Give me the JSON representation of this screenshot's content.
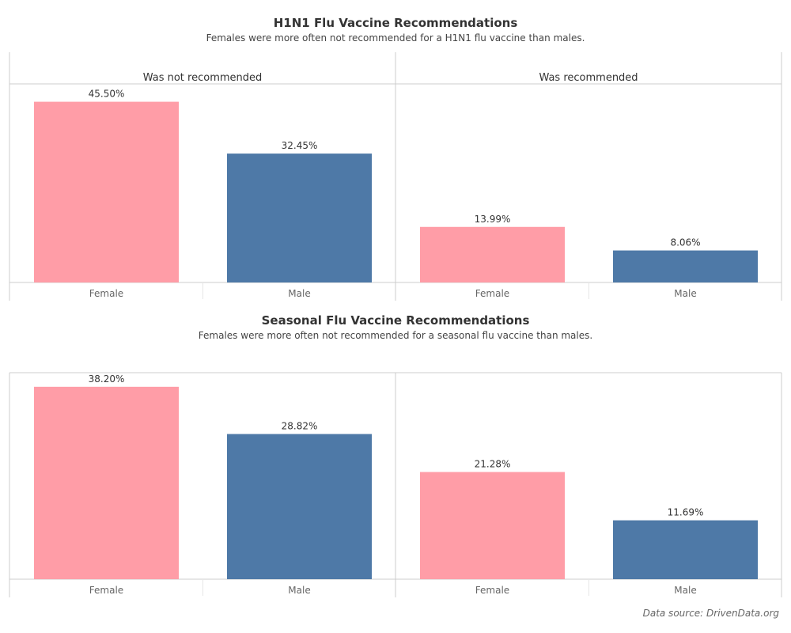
{
  "colors": {
    "female": "#ff9da7",
    "male": "#4e79a7",
    "grid": "#cccccc"
  },
  "chart_data": [
    {
      "type": "bar",
      "title": "H1N1 Flu Vaccine Recommendations",
      "subtitle": "Females were more often not recommended for a H1N1 flu vaccine than males.",
      "panels": [
        {
          "header": "Was not recommended",
          "categories": [
            "Female",
            "Male"
          ],
          "values": [
            45.5,
            32.45
          ],
          "labels": [
            "45.50%",
            "32.45%"
          ]
        },
        {
          "header": "Was recommended",
          "categories": [
            "Female",
            "Male"
          ],
          "values": [
            13.99,
            8.06
          ],
          "labels": [
            "13.99%",
            "8.06%"
          ]
        }
      ],
      "ylim": [
        0,
        50
      ],
      "grid": false,
      "legend": "none"
    },
    {
      "type": "bar",
      "title": "Seasonal Flu Vaccine Recommendations",
      "subtitle": "Females were more often not recommended for a seasonal flu vaccine than males.",
      "panels": [
        {
          "header": "",
          "categories": [
            "Female",
            "Male"
          ],
          "values": [
            38.2,
            28.82
          ],
          "labels": [
            "38.20%",
            "28.82%"
          ]
        },
        {
          "header": "",
          "categories": [
            "Female",
            "Male"
          ],
          "values": [
            21.28,
            11.69
          ],
          "labels": [
            "21.28%",
            "11.69%"
          ]
        }
      ],
      "ylim": [
        0,
        41
      ],
      "grid": false,
      "legend": "none"
    }
  ],
  "footer": {
    "source": "Data source: DrivenData.org"
  }
}
